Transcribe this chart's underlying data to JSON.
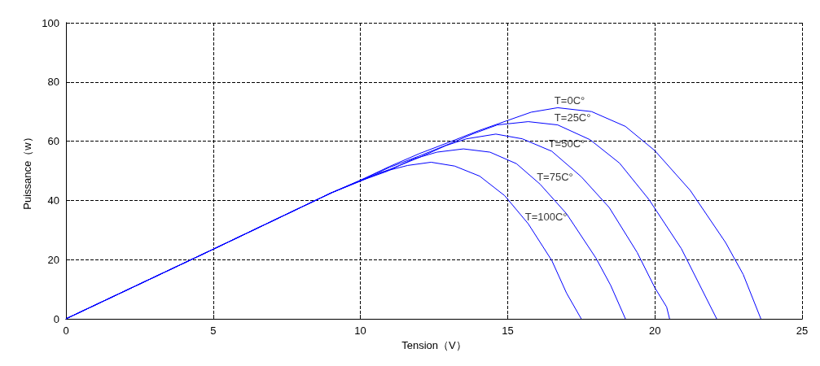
{
  "chart_data": {
    "type": "line",
    "xlabel": "Tension（V）",
    "ylabel": "Puissance（w）",
    "xlim": [
      0,
      25
    ],
    "xticks": [
      0,
      5,
      10,
      15,
      20,
      25
    ],
    "ylim": [
      0,
      100
    ],
    "yticks": [
      0,
      20,
      40,
      60,
      80,
      100
    ],
    "grid": true,
    "marker": "none",
    "series": [
      {
        "color": "#0000ff",
        "x": [
          0,
          5,
          9,
          10,
          11,
          12,
          13,
          14,
          15,
          15.8,
          16.7,
          17.85,
          19.0,
          20.0,
          21.2,
          22.4,
          23.0,
          23.6
        ],
        "values": [
          0,
          23.5,
          42.5,
          46.8,
          51.5,
          55.8,
          59.6,
          63.5,
          67,
          69.8,
          71.3,
          70,
          65,
          56.8,
          43.4,
          25.8,
          15,
          0
        ]
      },
      {
        "color": "#0000ff",
        "x": [
          0,
          5,
          9,
          10,
          11,
          12,
          13,
          13.8,
          14.65,
          15.7,
          16.7,
          17.8,
          18.8,
          19.8,
          20.9,
          22.1
        ],
        "values": [
          0,
          23.5,
          42.5,
          46.8,
          51.2,
          55,
          59,
          62.4,
          65.5,
          66.6,
          65.5,
          60.5,
          52.6,
          40.3,
          23.7,
          0
        ]
      },
      {
        "color": "#0000ff",
        "x": [
          0,
          5,
          9,
          10,
          11,
          12,
          12.9,
          13.6,
          14.6,
          15.5,
          16.5,
          17.5,
          18.45,
          19.4,
          20.0,
          20.4,
          20.5
        ],
        "values": [
          0,
          23.5,
          42.5,
          46.7,
          50.5,
          54.5,
          58.5,
          60.8,
          62.4,
          60.8,
          56.6,
          48,
          37.6,
          22.4,
          10.5,
          4,
          0
        ]
      },
      {
        "color": "#0000ff",
        "x": [
          0,
          5,
          9,
          10,
          10.9,
          11.8,
          12.6,
          13.5,
          14.4,
          15.3,
          16.1,
          17.0,
          18.0,
          18.5,
          19.0
        ],
        "values": [
          0,
          23.5,
          42.5,
          46.6,
          49.8,
          54,
          56.3,
          57.4,
          56.3,
          52.4,
          45.5,
          35.5,
          20.5,
          11.3,
          0
        ]
      },
      {
        "color": "#0000ff",
        "x": [
          0,
          5,
          9,
          10,
          10.7,
          11.6,
          12.4,
          13.2,
          14.05,
          14.9,
          15.7,
          16.5,
          17.0,
          17.5
        ],
        "values": [
          0,
          23.5,
          42.5,
          46.5,
          49.5,
          51.8,
          52.9,
          51.6,
          48.2,
          41.6,
          32.1,
          19.7,
          8.7,
          0
        ]
      }
    ],
    "annotations": [
      {
        "text": "T=0C°",
        "x": 16.7,
        "y": 71.3
      },
      {
        "text": "T=25C°",
        "x": 16.7,
        "y": 65.5
      },
      {
        "text": "T=50C°",
        "x": 16.5,
        "y": 56.6
      },
      {
        "text": "T=75C°",
        "x": 16.1,
        "y": 45.5
      },
      {
        "text": "T=100C°",
        "x": 15.7,
        "y": 32.1
      }
    ]
  }
}
